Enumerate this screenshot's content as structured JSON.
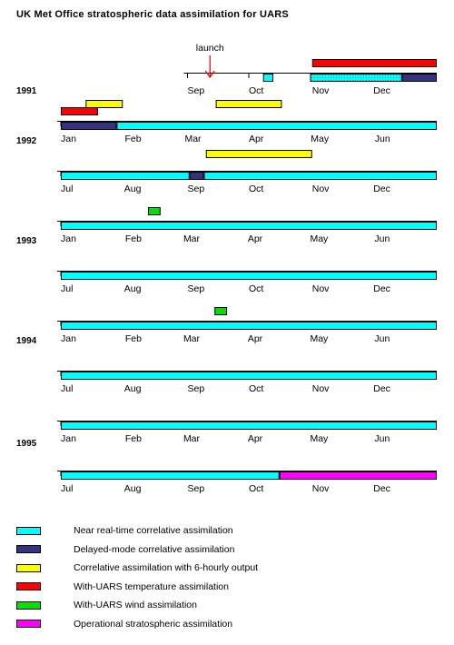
{
  "title": "UK Met Office stratospheric data assimilation for UARS",
  "chart_data": {
    "type": "timeline",
    "title": "UK Met Office stratospheric data assimilation for UARS",
    "colors": {
      "nrt": "#00ffff",
      "delayed": "#333380",
      "six_hourly": "#ffff00",
      "temperature": "#ff0000",
      "wind": "#00e000",
      "operational": "#ff00ff"
    },
    "legend": [
      {
        "key": "nrt",
        "label": "Near real-time correlative assimilation"
      },
      {
        "key": "delayed",
        "label": "Delayed-mode correlative assimilation"
      },
      {
        "key": "six_hourly",
        "label": "Correlative assimilation with 6-hourly output"
      },
      {
        "key": "temperature",
        "label": "With-UARS temperature assimilation"
      },
      {
        "key": "wind",
        "label": "With-UARS wind assimilation"
      },
      {
        "key": "operational",
        "label": "Operational stratospheric assimilation"
      }
    ],
    "annotation": {
      "text": "launch",
      "date": "1991-09-12"
    },
    "rows": [
      {
        "year_label": "1991",
        "months": [
          "Sep",
          "Oct",
          "Nov",
          "Dec"
        ],
        "start": "1991-07-01",
        "axis_from": "1991-09-01",
        "bars": [
          {
            "key": "nrt",
            "start": "1991-10-08",
            "end": "1991-10-13",
            "stipple": false
          },
          {
            "key": "nrt",
            "start": "1991-10-31",
            "end": "1991-12-15",
            "stipple": true
          },
          {
            "key": "delayed",
            "start": "1991-12-15",
            "end": "1992-01-01",
            "stipple": false
          },
          {
            "key": "temperature",
            "start": "1991-11-01",
            "end": "1992-01-01",
            "stipple": false
          }
        ]
      },
      {
        "year_label": "1992",
        "months": [
          "Jan",
          "Feb",
          "Mar",
          "Apr",
          "May",
          "Jun"
        ],
        "start": "1992-01-01",
        "bars": [
          {
            "key": "delayed",
            "start": "1992-01-01",
            "end": "1992-01-28",
            "stipple": false
          },
          {
            "key": "nrt",
            "start": "1992-01-28",
            "end": "1992-07-01",
            "stipple": false
          },
          {
            "key": "temperature",
            "start": "1992-01-01",
            "end": "1992-01-19",
            "stipple": false
          },
          {
            "key": "six_hourly",
            "start": "1992-01-13",
            "end": "1992-01-31",
            "stipple": false
          },
          {
            "key": "six_hourly",
            "start": "1992-03-16",
            "end": "1992-04-17",
            "stipple": false
          }
        ]
      },
      {
        "year_label": "",
        "months": [
          "Jul",
          "Aug",
          "Sep",
          "Oct",
          "Nov",
          "Dec"
        ],
        "start": "1992-07-01",
        "bars": [
          {
            "key": "nrt",
            "start": "1992-07-01",
            "end": "1992-09-02",
            "stipple": false
          },
          {
            "key": "delayed",
            "start": "1992-09-02",
            "end": "1992-09-09",
            "stipple": false
          },
          {
            "key": "nrt",
            "start": "1992-09-09",
            "end": "1993-01-01",
            "stipple": false
          },
          {
            "key": "six_hourly",
            "start": "1992-09-10",
            "end": "1992-11-01",
            "stipple": false
          }
        ]
      },
      {
        "year_label": "1993",
        "months": [
          "Jan",
          "Feb",
          "Mar",
          "Apr",
          "May",
          "Jun"
        ],
        "start": "1993-01-01",
        "bars": [
          {
            "key": "nrt",
            "start": "1993-01-01",
            "end": "1993-07-01",
            "stipple": false
          },
          {
            "key": "wind",
            "start": "1993-02-12",
            "end": "1993-02-18",
            "stipple": false
          }
        ]
      },
      {
        "year_label": "",
        "months": [
          "Jul",
          "Aug",
          "Sep",
          "Oct",
          "Nov",
          "Dec"
        ],
        "start": "1993-07-01",
        "bars": [
          {
            "key": "nrt",
            "start": "1993-07-01",
            "end": "1994-01-01",
            "stipple": false
          }
        ]
      },
      {
        "year_label": "1994",
        "months": [
          "Jan",
          "Feb",
          "Mar",
          "Apr",
          "May",
          "Jun"
        ],
        "start": "1994-01-01",
        "bars": [
          {
            "key": "nrt",
            "start": "1994-01-01",
            "end": "1994-07-01",
            "stipple": false
          },
          {
            "key": "wind",
            "start": "1994-03-16",
            "end": "1994-03-22",
            "stipple": false
          }
        ]
      },
      {
        "year_label": "",
        "months": [
          "Jul",
          "Aug",
          "Sep",
          "Oct",
          "Nov",
          "Dec"
        ],
        "start": "1994-07-01",
        "bars": [
          {
            "key": "nrt",
            "start": "1994-07-01",
            "end": "1995-01-01",
            "stipple": false
          }
        ]
      },
      {
        "year_label": "1995",
        "months": [
          "Jan",
          "Feb",
          "Mar",
          "Apr",
          "May",
          "Jun"
        ],
        "start": "1995-01-01",
        "bars": [
          {
            "key": "nrt",
            "start": "1995-01-01",
            "end": "1995-07-01",
            "stipple": false
          }
        ]
      },
      {
        "year_label": "",
        "months": [
          "Jul",
          "Aug",
          "Sep",
          "Oct",
          "Nov",
          "Dec"
        ],
        "start": "1995-07-01",
        "bars": [
          {
            "key": "nrt",
            "start": "1995-07-01",
            "end": "1995-10-16",
            "stipple": false
          },
          {
            "key": "operational",
            "start": "1995-10-16",
            "end": "1996-01-01",
            "stipple": false
          }
        ]
      }
    ]
  }
}
